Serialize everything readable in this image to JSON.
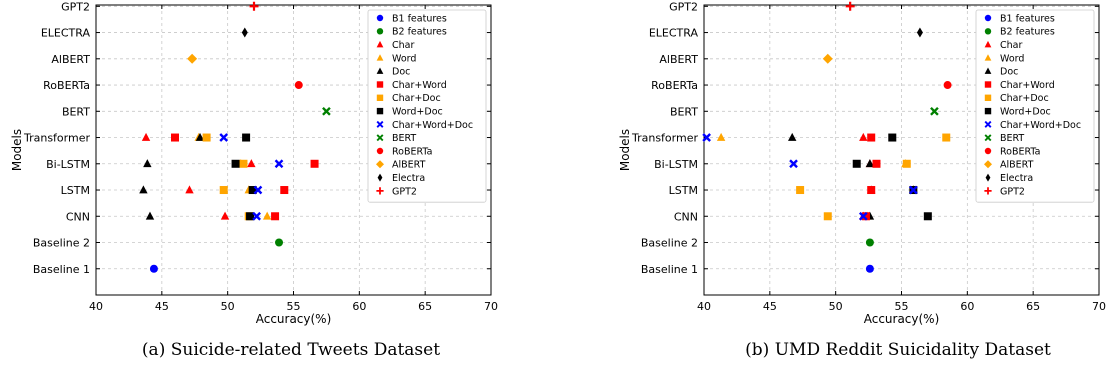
{
  "colors": {
    "B1 features": "#0000ff",
    "B2 features": "#008000",
    "Char": "#ff0000",
    "Word": "#ffa500",
    "Doc": "#000000",
    "Char+Word": "#ff0000",
    "Char+Doc": "#ffa500",
    "Word+Doc": "#000000",
    "Char+Word+Doc": "#0000ff",
    "BERT": "#008000",
    "RoBERTa": "#ff0000",
    "AlBERT": "#ffa500",
    "Electra": "#000000",
    "GPT2": "#ff0000"
  },
  "markers": {
    "B1 features": "circle",
    "B2 features": "circle",
    "Char": "triangle",
    "Word": "triangle",
    "Doc": "triangle",
    "Char+Word": "square",
    "Char+Doc": "square",
    "Word+Doc": "square",
    "Char+Word+Doc": "x",
    "BERT": "x",
    "RoBERTa": "circle",
    "AlBERT": "diamond",
    "Electra": "thin-diamond",
    "GPT2": "plus"
  },
  "chart_data": [
    {
      "type": "scatter",
      "caption": "(a) Suicide-related Tweets Dataset",
      "xlabel": "Accuracy(%)",
      "ylabel": "Models",
      "xlim": [
        40,
        70
      ],
      "xticks": [
        40,
        45,
        50,
        55,
        60,
        65,
        70
      ],
      "categories": [
        "Baseline 1",
        "Baseline 2",
        "CNN",
        "LSTM",
        "Bi-LSTM",
        "Transformer",
        "BERT",
        "RoBERTa",
        "AlBERT",
        "ELECTRA",
        "GPT2"
      ],
      "grid": true,
      "legend_position": "upper-right",
      "legend": [
        "B1 features",
        "B2 features",
        "Char",
        "Word",
        "Doc",
        "Char+Word",
        "Char+Doc",
        "Word+Doc",
        "Char+Word+Doc",
        "BERT",
        "RoBERTa",
        "AlBERT",
        "Electra",
        "GPT2"
      ],
      "series": [
        {
          "name": "B1 features",
          "points": [
            {
              "model": "Baseline 1",
              "x": 44.4
            }
          ]
        },
        {
          "name": "B2 features",
          "points": [
            {
              "model": "Baseline 2",
              "x": 53.9
            }
          ]
        },
        {
          "name": "Char",
          "points": [
            {
              "model": "CNN",
              "x": 49.8
            },
            {
              "model": "LSTM",
              "x": 47.1
            },
            {
              "model": "Bi-LSTM",
              "x": 51.8
            },
            {
              "model": "Transformer",
              "x": 43.8
            }
          ]
        },
        {
          "name": "Word",
          "points": [
            {
              "model": "CNN",
              "x": 53.0
            },
            {
              "model": "LSTM",
              "x": 51.6
            },
            {
              "model": "Bi-LSTM",
              "x": 51.0
            },
            {
              "model": "Transformer",
              "x": 47.8
            }
          ]
        },
        {
          "name": "Doc",
          "points": [
            {
              "model": "CNN",
              "x": 44.1
            },
            {
              "model": "LSTM",
              "x": 43.6
            },
            {
              "model": "Bi-LSTM",
              "x": 43.9
            },
            {
              "model": "Transformer",
              "x": 47.9
            }
          ]
        },
        {
          "name": "Char+Word",
          "points": [
            {
              "model": "CNN",
              "x": 53.6
            },
            {
              "model": "LSTM",
              "x": 54.3
            },
            {
              "model": "Bi-LSTM",
              "x": 56.6
            },
            {
              "model": "Transformer",
              "x": 46.0
            }
          ]
        },
        {
          "name": "Char+Doc",
          "points": [
            {
              "model": "CNN",
              "x": 51.6
            },
            {
              "model": "LSTM",
              "x": 49.7
            },
            {
              "model": "Bi-LSTM",
              "x": 51.2
            },
            {
              "model": "Transformer",
              "x": 48.4
            }
          ]
        },
        {
          "name": "Word+Doc",
          "points": [
            {
              "model": "CNN",
              "x": 51.7
            },
            {
              "model": "LSTM",
              "x": 51.9
            },
            {
              "model": "Bi-LSTM",
              "x": 50.6
            },
            {
              "model": "Transformer",
              "x": 51.4
            }
          ]
        },
        {
          "name": "Char+Word+Doc",
          "points": [
            {
              "model": "CNN",
              "x": 52.2
            },
            {
              "model": "LSTM",
              "x": 52.3
            },
            {
              "model": "Bi-LSTM",
              "x": 53.9
            },
            {
              "model": "Transformer",
              "x": 49.7
            }
          ]
        },
        {
          "name": "BERT",
          "points": [
            {
              "model": "BERT",
              "x": 57.5
            }
          ]
        },
        {
          "name": "RoBERTa",
          "points": [
            {
              "model": "RoBERTa",
              "x": 55.4
            }
          ]
        },
        {
          "name": "AlBERT",
          "points": [
            {
              "model": "AlBERT",
              "x": 47.3
            }
          ]
        },
        {
          "name": "Electra",
          "points": [
            {
              "model": "ELECTRA",
              "x": 51.3
            }
          ]
        },
        {
          "name": "GPT2",
          "points": [
            {
              "model": "GPT2",
              "x": 52.0
            }
          ]
        }
      ]
    },
    {
      "type": "scatter",
      "caption": "(b) UMD Reddit Suicidality Dataset",
      "xlabel": "Accuracy(%)",
      "ylabel": "Models",
      "xlim": [
        40,
        70
      ],
      "xticks": [
        40,
        45,
        50,
        55,
        60,
        65,
        70
      ],
      "categories": [
        "Baseline 1",
        "Baseline 2",
        "CNN",
        "LSTM",
        "Bi-LSTM",
        "Transformer",
        "BERT",
        "RoBERTa",
        "AlBERT",
        "ELECTRA",
        "GPT2"
      ],
      "grid": true,
      "legend_position": "upper-right",
      "legend": [
        "B1 features",
        "B2 features",
        "Char",
        "Word",
        "Doc",
        "Char+Word",
        "Char+Doc",
        "Word+Doc",
        "Char+Word+Doc",
        "BERT",
        "RoBERTa",
        "AlBERT",
        "Electra",
        "GPT2"
      ],
      "series": [
        {
          "name": "B1 features",
          "points": [
            {
              "model": "Baseline 1",
              "x": 52.6
            }
          ]
        },
        {
          "name": "B2 features",
          "points": [
            {
              "model": "Baseline 2",
              "x": 52.6
            }
          ]
        },
        {
          "name": "Char",
          "points": [
            {
              "model": "CNN",
              "x": 52.1
            },
            {
              "model": "LSTM",
              "x": 52.7
            },
            {
              "model": "Bi-LSTM",
              "x": 52.6
            },
            {
              "model": "Transformer",
              "x": 52.1
            }
          ]
        },
        {
          "name": "Word",
          "points": [
            {
              "model": "CNN",
              "x": 52.4
            },
            {
              "model": "LSTM",
              "x": 55.9
            },
            {
              "model": "Bi-LSTM",
              "x": 55.3
            },
            {
              "model": "Transformer",
              "x": 41.3
            }
          ]
        },
        {
          "name": "Doc",
          "points": [
            {
              "model": "CNN",
              "x": 52.6
            },
            {
              "model": "LSTM",
              "x": 55.9
            },
            {
              "model": "Bi-LSTM",
              "x": 52.6
            },
            {
              "model": "Transformer",
              "x": 46.7
            }
          ]
        },
        {
          "name": "Char+Word",
          "points": [
            {
              "model": "CNN",
              "x": 52.3
            },
            {
              "model": "LSTM",
              "x": 52.7
            },
            {
              "model": "Bi-LSTM",
              "x": 53.1
            },
            {
              "model": "Transformer",
              "x": 52.7
            }
          ]
        },
        {
          "name": "Char+Doc",
          "points": [
            {
              "model": "CNN",
              "x": 49.4
            },
            {
              "model": "LSTM",
              "x": 47.3
            },
            {
              "model": "Bi-LSTM",
              "x": 55.4
            },
            {
              "model": "Transformer",
              "x": 58.4
            }
          ]
        },
        {
          "name": "Word+Doc",
          "points": [
            {
              "model": "CNN",
              "x": 57.0
            },
            {
              "model": "LSTM",
              "x": 55.9
            },
            {
              "model": "Bi-LSTM",
              "x": 51.6
            },
            {
              "model": "Transformer",
              "x": 54.3
            }
          ]
        },
        {
          "name": "Char+Word+Doc",
          "points": [
            {
              "model": "CNN",
              "x": 52.1
            },
            {
              "model": "LSTM",
              "x": 55.9
            },
            {
              "model": "Bi-LSTM",
              "x": 46.8
            },
            {
              "model": "Transformer",
              "x": 40.2
            }
          ]
        },
        {
          "name": "BERT",
          "points": [
            {
              "model": "BERT",
              "x": 57.5
            }
          ]
        },
        {
          "name": "RoBERTa",
          "points": [
            {
              "model": "RoBERTa",
              "x": 58.5
            }
          ]
        },
        {
          "name": "AlBERT",
          "points": [
            {
              "model": "AlBERT",
              "x": 49.4
            }
          ]
        },
        {
          "name": "Electra",
          "points": [
            {
              "model": "ELECTRA",
              "x": 56.4
            }
          ]
        },
        {
          "name": "GPT2",
          "points": [
            {
              "model": "GPT2",
              "x": 51.1
            }
          ]
        }
      ]
    }
  ]
}
